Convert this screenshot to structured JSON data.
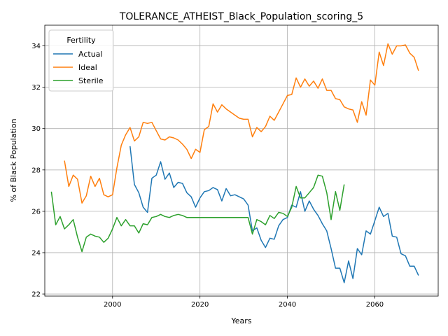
{
  "chart_data": {
    "type": "line",
    "title": "TOLERANCE_ATHEIST_Black_Population_scoring_5",
    "xlabel": "Years",
    "ylabel": "% of Black Population",
    "xlim": [
      1984.5,
      2074.5
    ],
    "ylim": [
      21.9,
      35.0
    ],
    "xticks": [
      2000,
      2020,
      2040,
      2060
    ],
    "yticks": [
      22,
      24,
      26,
      28,
      30,
      32,
      34
    ],
    "grid": true,
    "legend": {
      "title": "Fertility",
      "placement": "top-left"
    },
    "series": [
      {
        "name": "Actual",
        "color": "#1f77b4",
        "x": [
          2004,
          2005,
          2006,
          2007,
          2008,
          2009,
          2010,
          2011,
          2012,
          2013,
          2014,
          2015,
          2016,
          2017,
          2018,
          2019,
          2020,
          2021,
          2022,
          2023,
          2024,
          2025,
          2026,
          2027,
          2028,
          2029,
          2030,
          2031,
          2032,
          2033,
          2034,
          2035,
          2036,
          2037,
          2038,
          2039,
          2040,
          2041,
          2042,
          2043,
          2044,
          2045,
          2046,
          2047,
          2048,
          2049,
          2050,
          2051,
          2052,
          2053,
          2054,
          2055,
          2056,
          2057,
          2058,
          2059,
          2060,
          2061,
          2062,
          2063,
          2064,
          2065,
          2066,
          2067,
          2068,
          2069,
          2070
        ],
        "y": [
          29.15,
          27.3,
          26.9,
          26.2,
          25.95,
          27.6,
          27.75,
          28.4,
          27.55,
          27.85,
          27.15,
          27.4,
          27.35,
          26.9,
          26.7,
          26.2,
          26.65,
          26.95,
          27.0,
          27.15,
          27.05,
          26.5,
          27.1,
          26.75,
          26.8,
          26.7,
          26.6,
          26.3,
          25.05,
          25.2,
          24.6,
          24.25,
          24.7,
          24.65,
          25.3,
          25.6,
          25.7,
          26.3,
          26.2,
          26.95,
          26.0,
          26.5,
          26.1,
          25.8,
          25.4,
          25.05,
          24.2,
          23.25,
          23.25,
          22.55,
          23.6,
          22.75,
          24.2,
          23.9,
          25.05,
          24.9,
          25.55,
          26.2,
          25.75,
          25.9,
          24.8,
          24.75,
          23.95,
          23.85,
          23.35,
          23.35,
          22.9
        ]
      },
      {
        "name": "Ideal",
        "color": "#ff7f0e",
        "x": [
          1989,
          1990,
          1991,
          1992,
          1993,
          1994,
          1995,
          1996,
          1997,
          1998,
          1999,
          2000,
          2001,
          2002,
          2003,
          2004,
          2005,
          2006,
          2007,
          2008,
          2009,
          2010,
          2011,
          2012,
          2013,
          2014,
          2015,
          2016,
          2017,
          2018,
          2019,
          2020,
          2021,
          2022,
          2023,
          2024,
          2025,
          2026,
          2027,
          2028,
          2029,
          2030,
          2031,
          2032,
          2033,
          2034,
          2035,
          2036,
          2037,
          2038,
          2039,
          2040,
          2041,
          2042,
          2043,
          2044,
          2045,
          2046,
          2047,
          2048,
          2049,
          2050,
          2051,
          2052,
          2053,
          2054,
          2055,
          2056,
          2057,
          2058,
          2059,
          2060,
          2061,
          2062,
          2063,
          2064,
          2065,
          2066,
          2067,
          2068,
          2069,
          2070
        ],
        "y": [
          28.45,
          27.2,
          27.75,
          27.55,
          26.4,
          26.75,
          27.7,
          27.2,
          27.6,
          26.8,
          26.7,
          26.8,
          28.1,
          29.2,
          29.7,
          30.05,
          29.4,
          29.6,
          30.3,
          30.25,
          30.3,
          29.9,
          29.5,
          29.45,
          29.6,
          29.55,
          29.45,
          29.25,
          29.0,
          28.55,
          29.0,
          28.85,
          29.95,
          30.1,
          31.2,
          30.8,
          31.15,
          30.95,
          30.8,
          30.65,
          30.5,
          30.45,
          30.45,
          29.6,
          30.05,
          29.85,
          30.1,
          30.6,
          30.4,
          30.8,
          31.2,
          31.6,
          31.65,
          32.45,
          32.0,
          32.4,
          32.05,
          32.3,
          31.95,
          32.4,
          31.85,
          31.85,
          31.45,
          31.4,
          31.05,
          30.95,
          30.9,
          30.3,
          31.3,
          30.65,
          32.35,
          32.1,
          33.7,
          33.05,
          34.1,
          33.6,
          34.0,
          34.0,
          34.05,
          33.65,
          33.45,
          32.8
        ]
      },
      {
        "name": "Sterile",
        "color": "#2ca02c",
        "x": [
          1986,
          1987,
          1988,
          1989,
          1990,
          1991,
          1992,
          1993,
          1994,
          1995,
          1996,
          1997,
          1998,
          1999,
          2000,
          2001,
          2002,
          2003,
          2004,
          2005,
          2006,
          2007,
          2008,
          2009,
          2010,
          2011,
          2012,
          2013,
          2014,
          2015,
          2016,
          2017,
          2018,
          2019,
          2020,
          2021,
          2022,
          2023,
          2024,
          2025,
          2026,
          2027,
          2028,
          2029,
          2030,
          2031,
          2032,
          2033,
          2034,
          2035,
          2036,
          2037,
          2038,
          2039,
          2040,
          2041,
          2042,
          2043,
          2044,
          2045,
          2046,
          2047,
          2048,
          2049,
          2050,
          2051,
          2052,
          2053
        ],
        "y": [
          26.95,
          25.35,
          25.75,
          25.15,
          25.35,
          25.6,
          24.75,
          24.05,
          24.75,
          24.9,
          24.8,
          24.75,
          24.5,
          24.7,
          25.15,
          25.7,
          25.3,
          25.6,
          25.3,
          25.3,
          24.95,
          25.4,
          25.35,
          25.7,
          25.75,
          25.85,
          25.75,
          25.7,
          25.8,
          25.85,
          25.8,
          25.7,
          25.7,
          25.7,
          25.7,
          25.7,
          25.7,
          25.7,
          25.7,
          25.7,
          25.7,
          25.7,
          25.7,
          25.7,
          25.7,
          25.7,
          24.9,
          25.6,
          25.5,
          25.35,
          25.8,
          25.65,
          25.95,
          25.9,
          25.75,
          26.2,
          27.2,
          26.65,
          26.65,
          26.9,
          27.15,
          27.75,
          27.7,
          26.9,
          25.6,
          26.95,
          26.05,
          27.3
        ]
      }
    ]
  }
}
